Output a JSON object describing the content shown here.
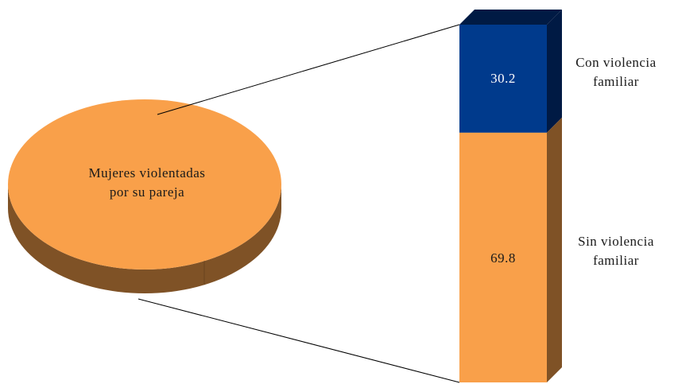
{
  "chart_data": {
    "type": "bar-of-pie",
    "pie": {
      "label_line1": "Mujeres violentadas",
      "label_line2": "por su pareja",
      "color": "#F9A04A",
      "side_color": "#7F5226"
    },
    "bar": {
      "segments": [
        {
          "name_line1": "Con violencia",
          "name_line2": "familiar",
          "value": 30.2,
          "value_label": "30.2",
          "color": "#003A8C",
          "side_color": "#001A44"
        },
        {
          "name_line1": "Sin violencia",
          "name_line2": "familiar",
          "value": 69.8,
          "value_label": "69.8",
          "color": "#F9A04A",
          "side_color": "#7F5226"
        }
      ],
      "total": 100
    }
  }
}
